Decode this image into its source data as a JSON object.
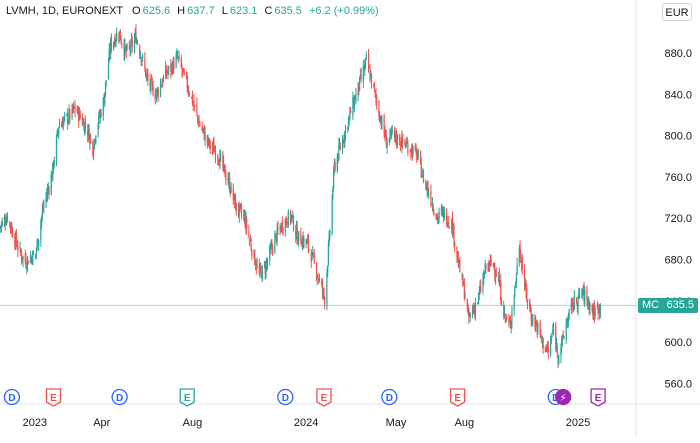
{
  "header": {
    "symbol_line": "LVMH, 1D, EURONEXT",
    "open_label": "O",
    "open_value": "625.6",
    "high_label": "H",
    "high_value": "637.7",
    "low_label": "L",
    "low_value": "623.1",
    "close_label": "C",
    "close_value": "635.5",
    "change": "+6.2 (+0.99%)"
  },
  "currency_button": "EUR",
  "price_badge": {
    "symbol": "MC",
    "price": "635.5"
  },
  "colors": {
    "up": "#26a69a",
    "down": "#ef5350",
    "dividend": "#2962ff",
    "earnings_past": "#ef5350",
    "earnings_good": "#26a69a",
    "split": "#9c27b0",
    "axis_text": "#131722",
    "price_line": "#26a69a"
  },
  "chart_data": {
    "type": "candlestick",
    "title": "LVMH, 1D, EURONEXT",
    "xlabel": "",
    "ylabel": "",
    "ylim": [
      540,
      910
    ],
    "y_ticks": [
      560,
      600,
      640,
      680,
      720,
      760,
      800,
      840,
      880
    ],
    "y_tick_labels": [
      "560.0",
      "600.0",
      "640.0",
      "680.0",
      "720.0",
      "760.0",
      "800.0",
      "840.0",
      "880.0"
    ],
    "x_ticks": [
      {
        "date": "2023-01-01",
        "label": "2023"
      },
      {
        "date": "2023-04-01",
        "label": "Apr"
      },
      {
        "date": "2023-08-01",
        "label": "Aug"
      },
      {
        "date": "2024-01-01",
        "label": "2024"
      },
      {
        "date": "2024-05-01",
        "label": "May"
      },
      {
        "date": "2024-08-01",
        "label": "Aug"
      },
      {
        "date": "2025-01-01",
        "label": "2025"
      }
    ],
    "x_range": [
      "2022-11-15",
      "2025-03-20"
    ],
    "last_price": 635.5,
    "price_key_points": [
      [
        "2022-11-15",
        712
      ],
      [
        "2022-11-25",
        722
      ],
      [
        "2022-12-05",
        700
      ],
      [
        "2022-12-12",
        686
      ],
      [
        "2022-12-20",
        678
      ],
      [
        "2023-01-02",
        686
      ],
      [
        "2023-01-12",
        730
      ],
      [
        "2023-01-24",
        762
      ],
      [
        "2023-02-02",
        810
      ],
      [
        "2023-02-15",
        818
      ],
      [
        "2023-02-24",
        826
      ],
      [
        "2023-03-03",
        818
      ],
      [
        "2023-03-13",
        805
      ],
      [
        "2023-03-20",
        788
      ],
      [
        "2023-03-24",
        805
      ],
      [
        "2023-04-03",
        832
      ],
      [
        "2023-04-13",
        888
      ],
      [
        "2023-04-24",
        900
      ],
      [
        "2023-05-03",
        880
      ],
      [
        "2023-05-10",
        885
      ],
      [
        "2023-05-17",
        896
      ],
      [
        "2023-05-26",
        872
      ],
      [
        "2023-06-02",
        852
      ],
      [
        "2023-06-13",
        840
      ],
      [
        "2023-06-26",
        860
      ],
      [
        "2023-07-03",
        865
      ],
      [
        "2023-07-12",
        875
      ],
      [
        "2023-07-21",
        856
      ],
      [
        "2023-07-28",
        843
      ],
      [
        "2023-08-10",
        812
      ],
      [
        "2023-08-22",
        793
      ],
      [
        "2023-09-04",
        782
      ],
      [
        "2023-09-20",
        752
      ],
      [
        "2023-09-29",
        730
      ],
      [
        "2023-10-10",
        720
      ],
      [
        "2023-10-20",
        690
      ],
      [
        "2023-10-30",
        665
      ],
      [
        "2023-11-07",
        672
      ],
      [
        "2023-11-20",
        700
      ],
      [
        "2023-12-01",
        715
      ],
      [
        "2023-12-12",
        722
      ],
      [
        "2023-12-20",
        702
      ],
      [
        "2024-01-03",
        695
      ],
      [
        "2024-01-10",
        680
      ],
      [
        "2024-01-18",
        662
      ],
      [
        "2024-01-26",
        642
      ],
      [
        "2024-01-31",
        688
      ],
      [
        "2024-02-08",
        770
      ],
      [
        "2024-02-20",
        798
      ],
      [
        "2024-03-04",
        830
      ],
      [
        "2024-03-13",
        850
      ],
      [
        "2024-03-22",
        872
      ],
      [
        "2024-03-28",
        856
      ],
      [
        "2024-04-09",
        820
      ],
      [
        "2024-04-18",
        794
      ],
      [
        "2024-04-26",
        800
      ],
      [
        "2024-05-07",
        795
      ],
      [
        "2024-05-20",
        788
      ],
      [
        "2024-05-30",
        780
      ],
      [
        "2024-06-06",
        760
      ],
      [
        "2024-06-17",
        740
      ],
      [
        "2024-06-25",
        720
      ],
      [
        "2024-07-03",
        725
      ],
      [
        "2024-07-15",
        715
      ],
      [
        "2024-07-24",
        676
      ],
      [
        "2024-08-02",
        645
      ],
      [
        "2024-08-06",
        622
      ],
      [
        "2024-08-19",
        640
      ],
      [
        "2024-08-30",
        672
      ],
      [
        "2024-09-09",
        676
      ],
      [
        "2024-09-16",
        660
      ],
      [
        "2024-09-24",
        625
      ],
      [
        "2024-10-01",
        615
      ],
      [
        "2024-10-08",
        652
      ],
      [
        "2024-10-14",
        695
      ],
      [
        "2024-10-22",
        650
      ],
      [
        "2024-10-30",
        625
      ],
      [
        "2024-11-07",
        615
      ],
      [
        "2024-11-15",
        598
      ],
      [
        "2024-11-22",
        590
      ],
      [
        "2024-11-29",
        612
      ],
      [
        "2024-12-05",
        588
      ],
      [
        "2024-12-11",
        600
      ],
      [
        "2024-12-17",
        620
      ],
      [
        "2024-12-24",
        635
      ],
      [
        "2025-01-07",
        648
      ],
      [
        "2025-01-14",
        640
      ],
      [
        "2025-01-22",
        628
      ],
      [
        "2025-01-31",
        635.5
      ]
    ],
    "event_markers": [
      {
        "date": "2022-12-01",
        "type": "D"
      },
      {
        "date": "2023-01-26",
        "type": "E"
      },
      {
        "date": "2023-04-25",
        "type": "D"
      },
      {
        "date": "2023-07-25",
        "type": "E"
      },
      {
        "date": "2023-12-04",
        "type": "D"
      },
      {
        "date": "2024-01-25",
        "type": "E"
      },
      {
        "date": "2024-04-22",
        "type": "D"
      },
      {
        "date": "2024-07-23",
        "type": "E"
      },
      {
        "date": "2024-12-02",
        "type": "D"
      },
      {
        "date": "2024-12-12",
        "type": "S"
      },
      {
        "date": "2025-01-28",
        "type": "E"
      }
    ]
  }
}
